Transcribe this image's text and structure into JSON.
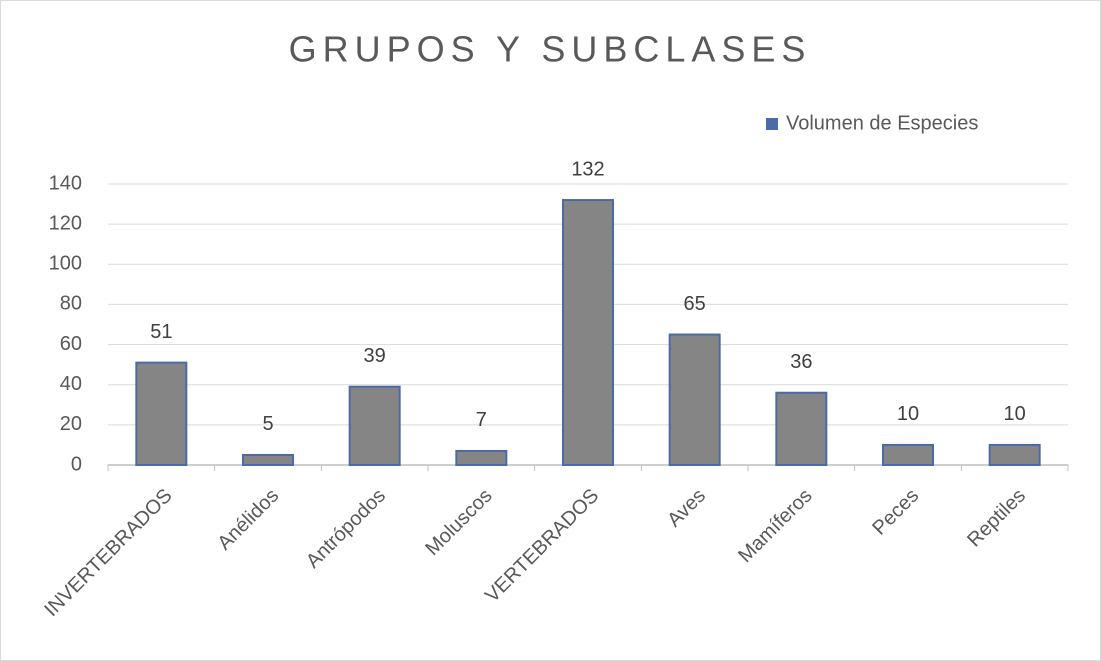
{
  "chart_data": {
    "type": "bar",
    "title": "GRUPOS Y SUBCLASES",
    "categories": [
      "INVERTEBRADOS",
      "Anélidos",
      "Antrópodos",
      "Moluscos",
      "VERTEBRADOS",
      "Aves",
      "Mamíferos",
      "Peces",
      "Reptiles"
    ],
    "series": [
      {
        "name": "Volumen de Especies",
        "color": "#4a6aa8",
        "fill": "#858585",
        "values": [
          51,
          5,
          39,
          7,
          132,
          65,
          36,
          10,
          10
        ]
      }
    ],
    "ylim": [
      0,
      140
    ],
    "yticks": [
      0,
      20,
      40,
      60,
      80,
      100,
      120,
      140
    ],
    "grid": true,
    "legend": "top-right"
  }
}
